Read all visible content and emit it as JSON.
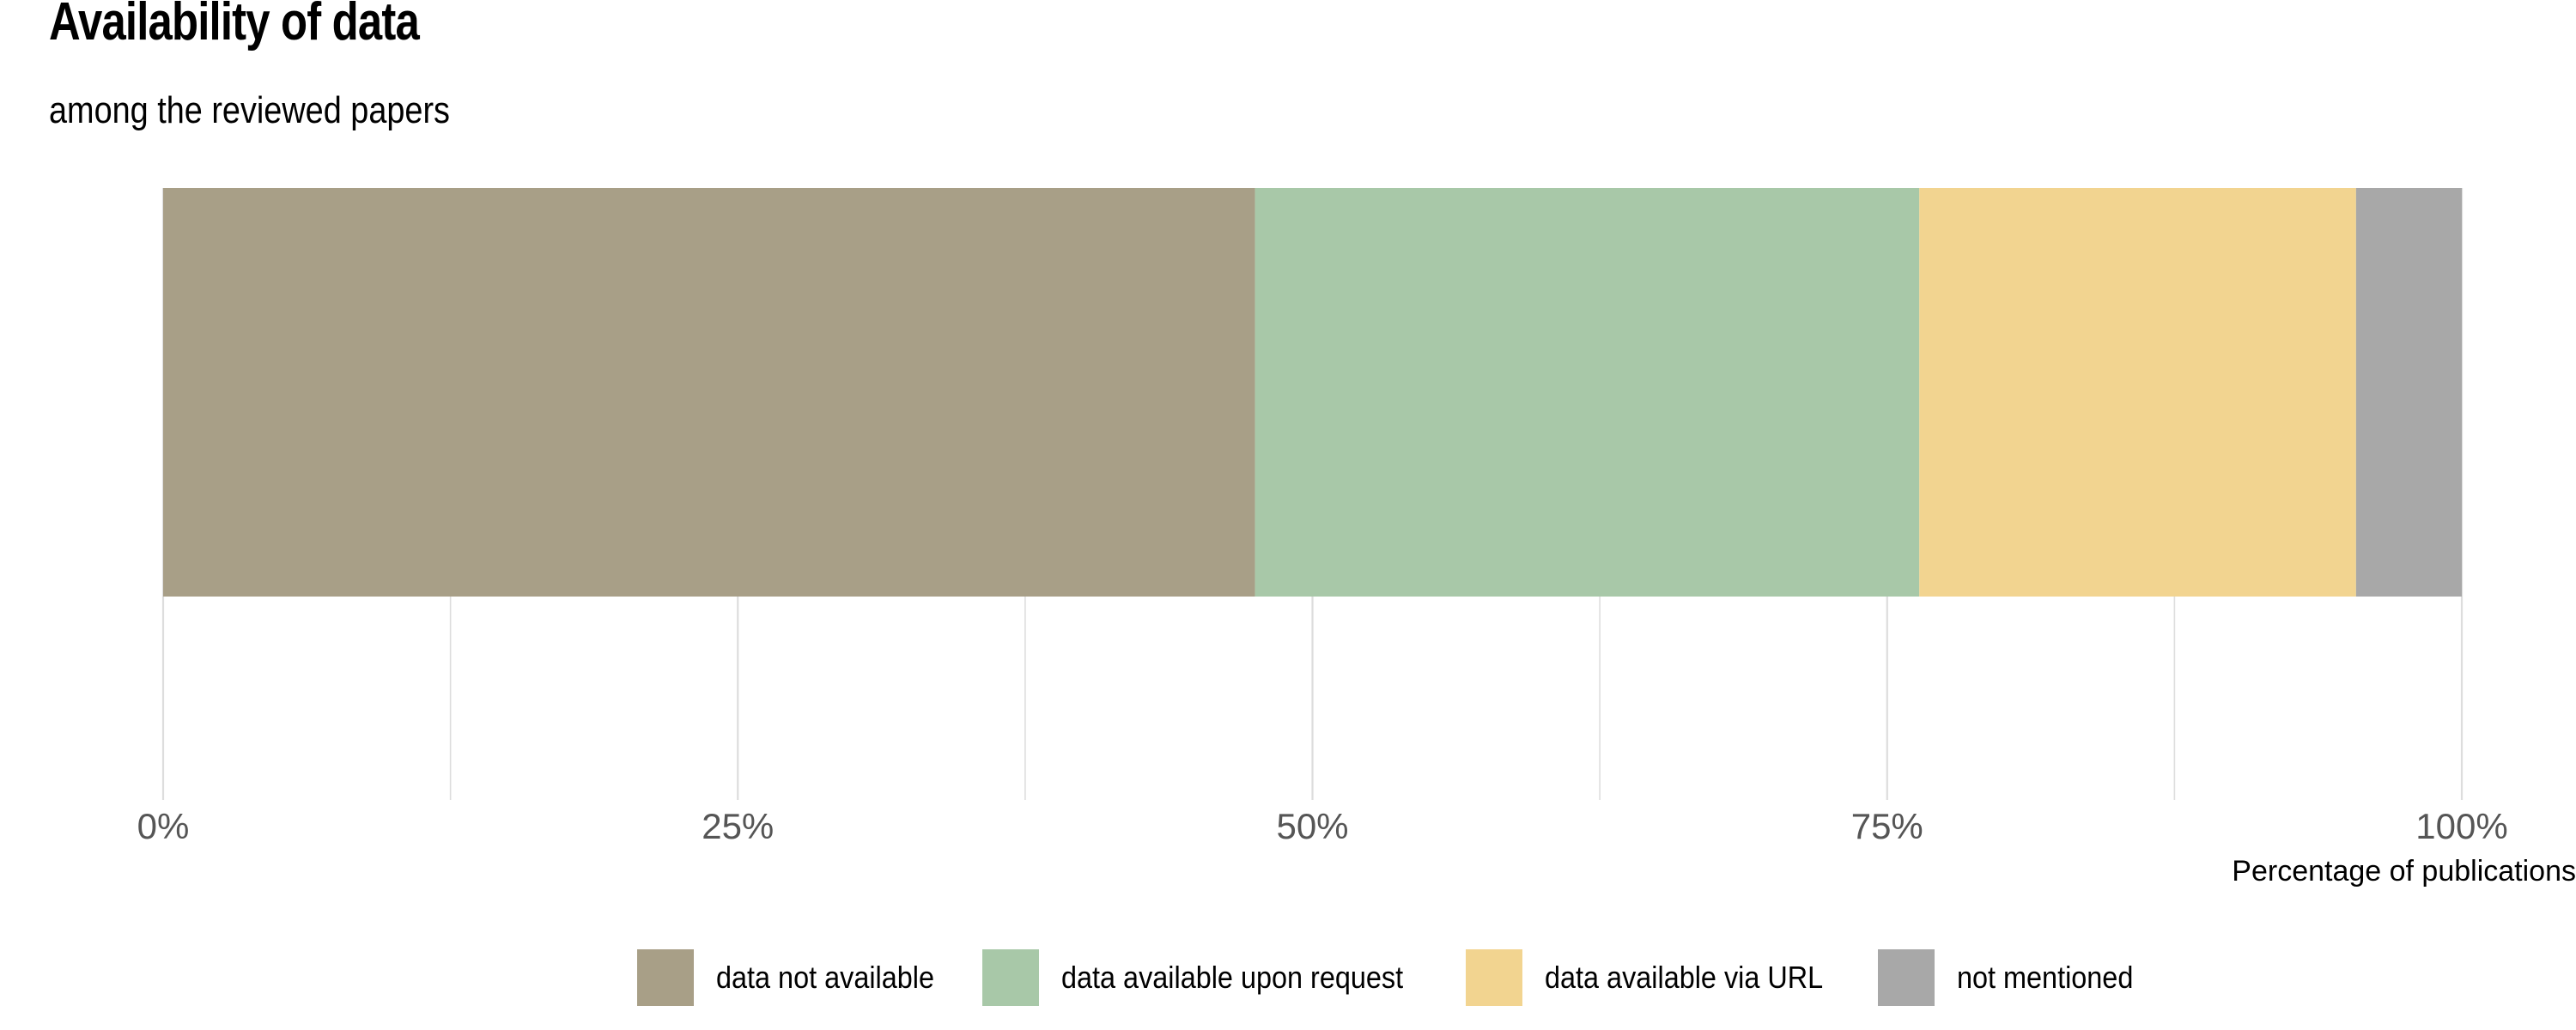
{
  "chart_data": {
    "type": "bar",
    "orientation": "horizontal",
    "stacked": true,
    "title": "Availability of data",
    "subtitle": "among the reviewed papers",
    "xlabel": "Percentage of publications",
    "ylabel": "",
    "xlim": [
      0,
      100
    ],
    "x_ticks": [
      "0%",
      "25%",
      "50%",
      "75%",
      "100%"
    ],
    "grid": true,
    "legend_position": "bottom",
    "series": [
      {
        "name": "data not available",
        "values": [
          47.5
        ],
        "color": "#A89F87"
      },
      {
        "name": "data available upon request",
        "values": [
          28.9
        ],
        "color": "#A8C8A8"
      },
      {
        "name": "data available via URL",
        "values": [
          19.0
        ],
        "color": "#F2D490"
      },
      {
        "name": "not mentioned",
        "values": [
          4.6
        ],
        "color": "#A8A8A8"
      }
    ]
  }
}
